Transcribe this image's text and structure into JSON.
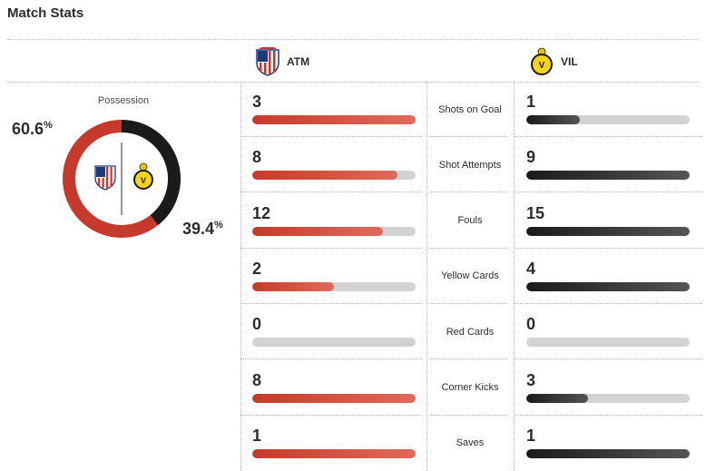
{
  "header": {
    "title": "Match Stats"
  },
  "teams": {
    "home": {
      "abbr": "ATM",
      "color": "#c73a2b"
    },
    "away": {
      "abbr": "VIL",
      "color": "#1b1b1b"
    }
  },
  "possession": {
    "label": "Possession",
    "home_value": "60.6",
    "away_value": "39.4",
    "unit": "%",
    "home_fraction": 0.606,
    "away_fraction": 0.394
  },
  "stats": [
    {
      "label": "Shots on Goal",
      "home": "3",
      "away": "1",
      "home_fill": 1.0,
      "away_fill": 0.33
    },
    {
      "label": "Shot Attempts",
      "home": "8",
      "away": "9",
      "home_fill": 0.89,
      "away_fill": 1.0
    },
    {
      "label": "Fouls",
      "home": "12",
      "away": "15",
      "home_fill": 0.8,
      "away_fill": 1.0
    },
    {
      "label": "Yellow Cards",
      "home": "2",
      "away": "4",
      "home_fill": 0.5,
      "away_fill": 1.0
    },
    {
      "label": "Red Cards",
      "home": "0",
      "away": "0",
      "home_fill": 0.0,
      "away_fill": 0.0
    },
    {
      "label": "Corner Kicks",
      "home": "8",
      "away": "3",
      "home_fill": 1.0,
      "away_fill": 0.375
    },
    {
      "label": "Saves",
      "home": "1",
      "away": "1",
      "home_fill": 1.0,
      "away_fill": 1.0
    }
  ]
}
